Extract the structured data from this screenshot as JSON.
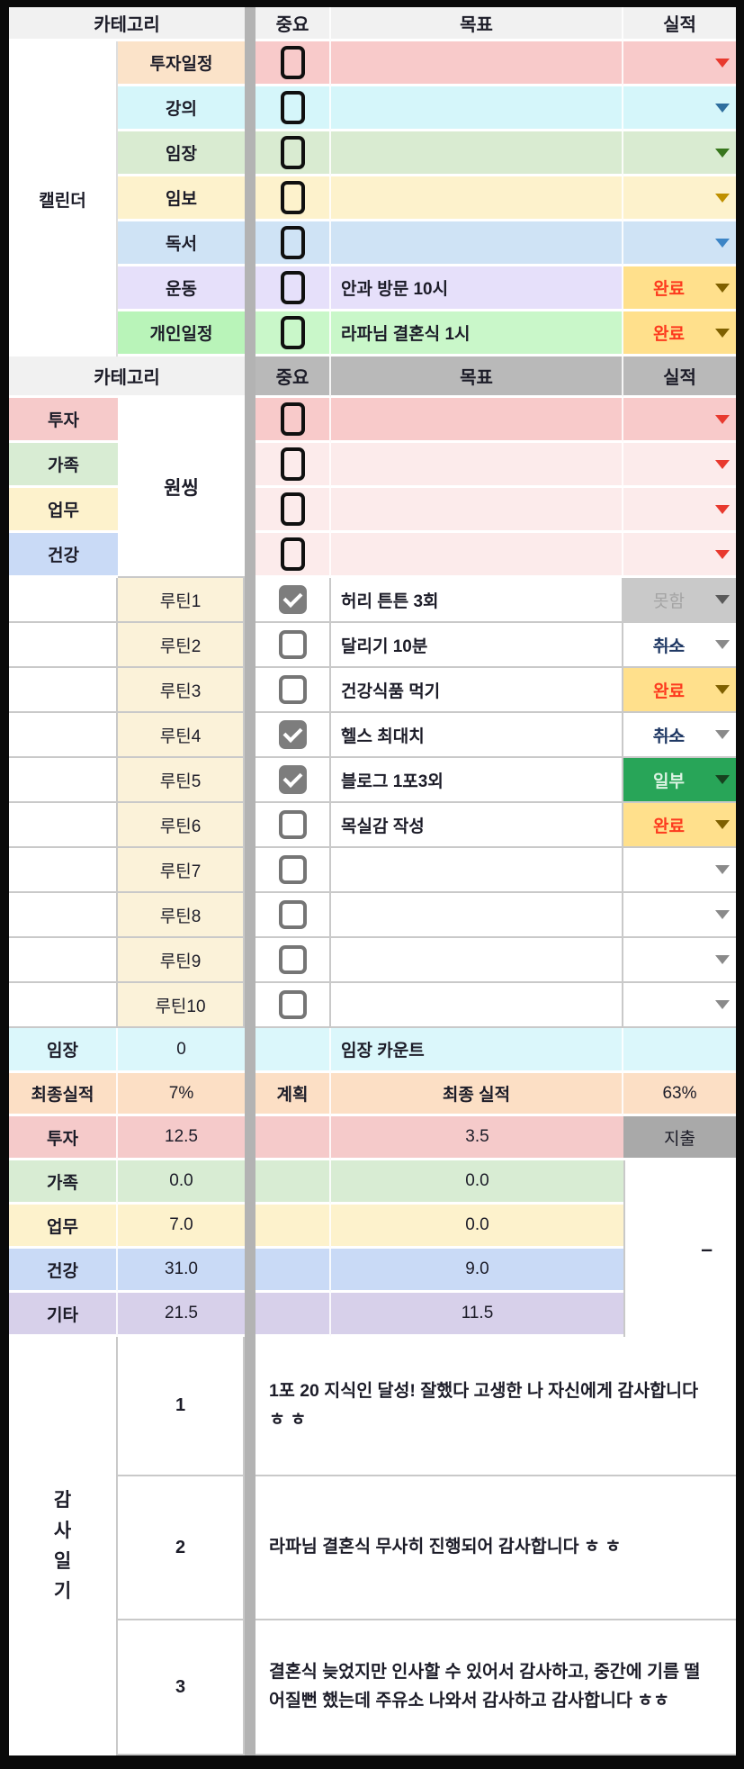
{
  "palette": {
    "frame_black": "#0a0a0a",
    "header_light_gray": "#f1f1f1",
    "header_dark_gray": "#b9b9b9",
    "divider_gray": "#b3b3b3",
    "calendar_pink": "#f8caca",
    "calendar_peach_label": "#fbe3c9",
    "calendar_cyan": "#d5f6fa",
    "calendar_green": "#d9ebd1",
    "calendar_yellow": "#fdf2cc",
    "calendar_blue": "#cfe3f5",
    "calendar_purple": "#e6e0fa",
    "calendar_mint_label": "#b9f4b9",
    "calendar_mint": "#c9f7c9",
    "onething_light_pink": "#fcebeb",
    "routine_cream_label": "#fbf2d9",
    "imjang_cyan": "#dbf7fb",
    "final_peach": "#fcdfc5",
    "stat_blue": "#c9daf6",
    "stat_purple": "#d7d0ea",
    "expense_gray": "#a9a9a9",
    "status_done_bg": "#ffe08c",
    "status_done_text": "#fd3a1e",
    "status_partial_bg": "#28a558",
    "status_partial_text": "#dcf3e2",
    "status_fail_bg": "#c9c9c9",
    "status_fail_text": "#a4a4a4",
    "status_cancel_text": "#1f3864",
    "arrow_red": "#e8392e",
    "arrow_steel_blue": "#2e6e9e",
    "arrow_green": "#38761d",
    "arrow_dark_yellow": "#bf9000",
    "arrow_blue": "#3d85c6",
    "arrow_olive": "#7f6000"
  },
  "calendar": {
    "section_label": "캘린더",
    "header": {
      "category": "카테고리",
      "important": "중요",
      "goal": "목표",
      "result": "실적"
    },
    "rows": [
      {
        "label": "투자일정",
        "important_checked": false,
        "goal": "",
        "status": ""
      },
      {
        "label": "강의",
        "important_checked": false,
        "goal": "",
        "status": ""
      },
      {
        "label": "임장",
        "important_checked": false,
        "goal": "",
        "status": ""
      },
      {
        "label": "임보",
        "important_checked": false,
        "goal": "",
        "status": ""
      },
      {
        "label": "독서",
        "important_checked": false,
        "goal": "",
        "status": ""
      },
      {
        "label": "운동",
        "important_checked": false,
        "goal": "안과 방문 10시",
        "status": "완료"
      },
      {
        "label": "개인일정",
        "important_checked": false,
        "goal": "라파님 결혼식 1시",
        "status": "완료"
      }
    ]
  },
  "onething": {
    "header": {
      "category": "카테고리",
      "important": "중요",
      "goal": "목표",
      "result": "실적"
    },
    "section_label": "원씽",
    "categories": [
      "투자",
      "가족",
      "업무",
      "건강"
    ],
    "rows": [
      {
        "important_checked": false,
        "goal": "",
        "status": ""
      },
      {
        "important_checked": false,
        "goal": "",
        "status": ""
      },
      {
        "important_checked": false,
        "goal": "",
        "status": ""
      },
      {
        "important_checked": false,
        "goal": "",
        "status": ""
      }
    ]
  },
  "routines": {
    "rows": [
      {
        "label": "루틴1",
        "checked": true,
        "goal": "허리 튼튼 3회",
        "status": "못함"
      },
      {
        "label": "루틴2",
        "checked": false,
        "goal": "달리기 10분",
        "status": "취소"
      },
      {
        "label": "루틴3",
        "checked": false,
        "goal": "건강식품 먹기",
        "status": "완료"
      },
      {
        "label": "루틴4",
        "checked": true,
        "goal": "헬스 최대치",
        "status": "취소"
      },
      {
        "label": "루틴5",
        "checked": true,
        "goal": "블로그 1포3외",
        "status": "일부"
      },
      {
        "label": "루틴6",
        "checked": false,
        "goal": "목실감 작성",
        "status": "완료"
      },
      {
        "label": "루틴7",
        "checked": false,
        "goal": "",
        "status": ""
      },
      {
        "label": "루틴8",
        "checked": false,
        "goal": "",
        "status": ""
      },
      {
        "label": "루틴9",
        "checked": false,
        "goal": "",
        "status": ""
      },
      {
        "label": "루틴10",
        "checked": false,
        "goal": "",
        "status": ""
      }
    ]
  },
  "imjang": {
    "label": "임장",
    "count": "0",
    "goal": "임장 카운트",
    "result": ""
  },
  "final": {
    "label": "최종실적",
    "plan_pct": "7%",
    "plan": "계획",
    "title": "최종 실적",
    "result_pct": "63%"
  },
  "stats": {
    "expense_header": "지출",
    "dash": "–",
    "rows": [
      {
        "label": "투자",
        "planned": "12.5",
        "actual": "3.5"
      },
      {
        "label": "가족",
        "planned": "0.0",
        "actual": "0.0"
      },
      {
        "label": "업무",
        "planned": "7.0",
        "actual": "0.0"
      },
      {
        "label": "건강",
        "planned": "31.0",
        "actual": "9.0"
      },
      {
        "label": "기타",
        "planned": "21.5",
        "actual": "11.5"
      }
    ]
  },
  "gratitude": {
    "section_label": "감사일기",
    "entries": [
      {
        "num": "1",
        "text": "1포 20 지식인 달성! 잘했다 고생한 나 자신에게 감사합니다 ㅎ ㅎ"
      },
      {
        "num": "2",
        "text": "라파님 결혼식 무사히 진행되어 감사합니다 ㅎ ㅎ"
      },
      {
        "num": "3",
        "text": "결혼식 늦었지만 인사할 수 있어서 감사하고, 중간에 기름 떨어질뻔 했는데 주유소 나와서 감사하고 감사합니다 ㅎㅎ"
      }
    ]
  }
}
